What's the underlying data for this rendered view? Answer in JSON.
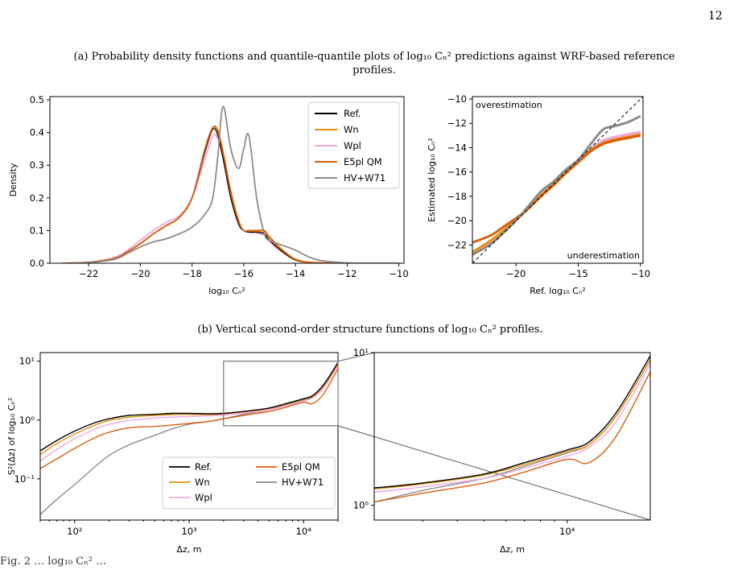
{
  "page": {
    "number": "12",
    "caption_a": "(a) Probability density functions and quantile-quantile plots of log₁₀ Cₙ² predictions against WRF-based reference profiles.",
    "caption_b": "(b) Vertical second-order structure functions of log₁₀ Cₙ² profiles.",
    "caption_bottom": "Fig. 2  …  log₁₀ Cₙ²  …"
  },
  "colors": {
    "Ref.": "#000000",
    "Wn": "#e8920e",
    "Wpl": "#f4a6e0",
    "E5pl QM": "#d95f0e",
    "HV+W71": "#8c8c8c"
  },
  "chart_data": [
    {
      "id": "pdf",
      "type": "line",
      "xlabel": "log₁₀ Cₙ²",
      "ylabel": "Density",
      "xlim": [
        -23.5,
        -9.8
      ],
      "ylim": [
        0,
        0.51
      ],
      "xticks": [
        -22,
        -20,
        -18,
        -16,
        -14,
        -12,
        -10
      ],
      "yticks": [
        0.0,
        0.1,
        0.2,
        0.3,
        0.4,
        0.5
      ],
      "legend": "top-right",
      "x": [
        -23,
        -22,
        -21,
        -20.5,
        -20,
        -19.5,
        -19,
        -18.5,
        -18,
        -17.5,
        -17.2,
        -17,
        -16.8,
        -16.5,
        -16.2,
        -16,
        -15.8,
        -15.5,
        -15.2,
        -15,
        -14.5,
        -14,
        -13.5,
        -13,
        -12,
        -11,
        -10
      ],
      "series": [
        {
          "name": "Ref.",
          "values": [
            0,
            0.003,
            0.015,
            0.035,
            0.06,
            0.09,
            0.115,
            0.14,
            0.2,
            0.34,
            0.41,
            0.39,
            0.32,
            0.2,
            0.12,
            0.1,
            0.095,
            0.095,
            0.09,
            0.07,
            0.035,
            0.01,
            0.003,
            0.001,
            0,
            0,
            0
          ]
        },
        {
          "name": "Wn",
          "values": [
            0,
            0.003,
            0.015,
            0.035,
            0.06,
            0.09,
            0.115,
            0.14,
            0.2,
            0.35,
            0.415,
            0.4,
            0.33,
            0.21,
            0.125,
            0.1,
            0.098,
            0.098,
            0.092,
            0.072,
            0.035,
            0.01,
            0.003,
            0.001,
            0,
            0,
            0
          ]
        },
        {
          "name": "Wpl",
          "values": [
            0,
            0.003,
            0.018,
            0.04,
            0.07,
            0.1,
            0.125,
            0.145,
            0.2,
            0.32,
            0.39,
            0.38,
            0.32,
            0.2,
            0.12,
            0.1,
            0.095,
            0.092,
            0.085,
            0.065,
            0.033,
            0.01,
            0.003,
            0.001,
            0,
            0,
            0
          ]
        },
        {
          "name": "E5pl QM",
          "values": [
            0,
            0.003,
            0.015,
            0.035,
            0.06,
            0.09,
            0.115,
            0.14,
            0.2,
            0.35,
            0.415,
            0.405,
            0.34,
            0.22,
            0.13,
            0.1,
            0.1,
            0.1,
            0.1,
            0.08,
            0.04,
            0.012,
            0.003,
            0.001,
            0,
            0,
            0
          ]
        },
        {
          "name": "HV+W71",
          "values": [
            0,
            0.002,
            0.012,
            0.03,
            0.05,
            0.065,
            0.075,
            0.09,
            0.11,
            0.15,
            0.2,
            0.33,
            0.48,
            0.35,
            0.29,
            0.35,
            0.39,
            0.2,
            0.09,
            0.07,
            0.055,
            0.04,
            0.02,
            0.008,
            0.001,
            0,
            0
          ]
        }
      ]
    },
    {
      "id": "qq",
      "type": "line",
      "xlabel": "Ref. log₁₀ Cₙ²",
      "ylabel": "Estimated log₁₀ Cₙ²",
      "xlim": [
        -23.5,
        -9.8
      ],
      "ylim": [
        -23.5,
        -9.8
      ],
      "xticks": [
        -20,
        -15,
        -10
      ],
      "yticks": [
        -22,
        -20,
        -18,
        -16,
        -14,
        -12,
        -10
      ],
      "annotations": [
        "overestimation",
        "underestimation"
      ],
      "x": [
        -23.5,
        -22,
        -21,
        -20,
        -19,
        -18,
        -17,
        -16,
        -15,
        -14,
        -13,
        -12,
        -11,
        -10
      ],
      "series": [
        {
          "name": "Wn",
          "values": [
            -22.6,
            -21.6,
            -20.8,
            -19.9,
            -19.0,
            -17.9,
            -17.0,
            -16.0,
            -15.1,
            -14.2,
            -13.6,
            -13.3,
            -13.1,
            -12.9
          ]
        },
        {
          "name": "Wpl",
          "values": [
            -22.7,
            -21.7,
            -20.9,
            -20.0,
            -19.0,
            -18.0,
            -17.0,
            -16.0,
            -15.0,
            -14.1,
            -13.4,
            -13.1,
            -12.9,
            -12.7
          ]
        },
        {
          "name": "E5pl QM",
          "values": [
            -21.8,
            -21.2,
            -20.5,
            -19.8,
            -19.0,
            -18.0,
            -17.1,
            -16.1,
            -15.2,
            -14.3,
            -13.7,
            -13.4,
            -13.2,
            -13.0
          ]
        },
        {
          "name": "HV+W71",
          "values": [
            -22.8,
            -21.9,
            -21.0,
            -20.0,
            -18.8,
            -17.6,
            -16.8,
            -15.8,
            -15.0,
            -13.7,
            -12.5,
            -12.2,
            -11.9,
            -11.4
          ]
        }
      ]
    },
    {
      "id": "structure",
      "type": "line",
      "xscale": "log",
      "yscale": "log",
      "xlabel": "Δz, m",
      "ylabel": "S²(Δz) of log₁₀ Cₙ²",
      "xlim": [
        50,
        20000
      ],
      "ylim": [
        0.02,
        14
      ],
      "xticks": [
        "10²",
        "10³",
        "10⁴"
      ],
      "yticks": [
        "10⁻¹",
        "10⁰",
        "10¹"
      ],
      "legend": "lower-center",
      "x": [
        50,
        70,
        100,
        150,
        200,
        300,
        500,
        700,
        1000,
        1500,
        2000,
        3000,
        5000,
        7000,
        10000,
        12000,
        15000,
        20000
      ],
      "series": [
        {
          "name": "Ref.",
          "values": [
            0.3,
            0.45,
            0.65,
            0.9,
            1.05,
            1.2,
            1.25,
            1.3,
            1.3,
            1.28,
            1.3,
            1.4,
            1.6,
            1.9,
            2.3,
            2.6,
            4.0,
            9.5
          ]
        },
        {
          "name": "Wn",
          "values": [
            0.26,
            0.4,
            0.58,
            0.82,
            0.98,
            1.12,
            1.2,
            1.24,
            1.25,
            1.24,
            1.28,
            1.38,
            1.58,
            1.85,
            2.25,
            2.5,
            3.8,
            9.0
          ]
        },
        {
          "name": "Wpl",
          "values": [
            0.2,
            0.32,
            0.48,
            0.7,
            0.85,
            0.98,
            1.08,
            1.12,
            1.15,
            1.18,
            1.22,
            1.32,
            1.5,
            1.75,
            2.1,
            2.4,
            3.5,
            8.5
          ]
        },
        {
          "name": "E5pl QM",
          "values": [
            0.15,
            0.22,
            0.33,
            0.5,
            0.62,
            0.74,
            0.78,
            0.82,
            0.88,
            0.95,
            1.05,
            1.2,
            1.4,
            1.65,
            2.0,
            1.9,
            2.8,
            7.5
          ]
        },
        {
          "name": "HV+W71",
          "values": [
            0.025,
            0.045,
            0.08,
            0.16,
            0.25,
            0.38,
            0.55,
            0.7,
            0.85,
            0.95,
            1.05,
            1.25,
            1.5,
            1.8,
            2.2,
            2.5,
            3.8,
            9.0
          ]
        }
      ]
    },
    {
      "id": "zoom",
      "type": "line",
      "xscale": "log",
      "yscale": "log",
      "xlabel": "Δz, m",
      "xlim": [
        2000,
        20000
      ],
      "ylim": [
        0.8,
        10
      ],
      "xticks": [
        "10⁴"
      ],
      "yticks": [
        "10⁰",
        "10¹"
      ],
      "inset_of": "structure"
    }
  ]
}
